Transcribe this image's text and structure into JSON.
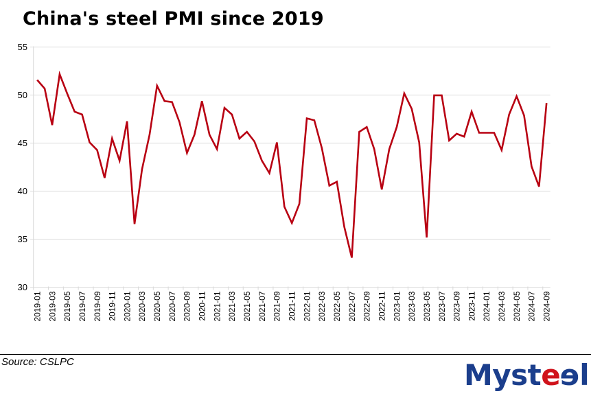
{
  "title": "China's steel PMI since 2019",
  "source": "Source: CSLPC",
  "logo": {
    "prefix": "Myst",
    "e1": "e",
    "e2": "e",
    "suffix": "l",
    "primary_color": "#1B3E8C",
    "accent_color": "#D0121B"
  },
  "chart_data": {
    "type": "line",
    "title": "China's steel PMI since 2019",
    "xlabel": "",
    "ylabel": "",
    "ylim": [
      30,
      55
    ],
    "yticks": [
      30,
      35,
      40,
      45,
      50,
      55
    ],
    "grid": true,
    "legend": "none",
    "line_color": "#B80012",
    "x": [
      "2019-01",
      "2019-02",
      "2019-03",
      "2019-04",
      "2019-05",
      "2019-06",
      "2019-07",
      "2019-08",
      "2019-09",
      "2019-10",
      "2019-11",
      "2019-12",
      "2020-01",
      "2020-02",
      "2020-03",
      "2020-04",
      "2020-05",
      "2020-06",
      "2020-07",
      "2020-08",
      "2020-09",
      "2020-10",
      "2020-11",
      "2020-12",
      "2021-01",
      "2021-02",
      "2021-03",
      "2021-04",
      "2021-05",
      "2021-06",
      "2021-07",
      "2021-08",
      "2021-09",
      "2021-10",
      "2021-11",
      "2021-12",
      "2022-01",
      "2022-02",
      "2022-03",
      "2022-04",
      "2022-05",
      "2022-06",
      "2022-07",
      "2022-08",
      "2022-09",
      "2022-10",
      "2022-11",
      "2022-12",
      "2023-01",
      "2023-02",
      "2023-03",
      "2023-04",
      "2023-05",
      "2023-06",
      "2023-07",
      "2023-08",
      "2023-09",
      "2023-10",
      "2023-11",
      "2023-12",
      "2024-01",
      "2024-02",
      "2024-03",
      "2024-04",
      "2024-05",
      "2024-06",
      "2024-07",
      "2024-08",
      "2024-09"
    ],
    "xtick_labels": [
      "2019-01",
      "2019-03",
      "2019-05",
      "2019-07",
      "2019-09",
      "2019-11",
      "2020-01",
      "2020-03",
      "2020-05",
      "2020-07",
      "2020-09",
      "2020-11",
      "2021-01",
      "2021-03",
      "2021-05",
      "2021-07",
      "2021-09",
      "2021-11",
      "2022-01",
      "2022-03",
      "2022-05",
      "2022-07",
      "2022-09",
      "2022-11",
      "2023-01",
      "2023-03",
      "2023-05",
      "2023-07",
      "2023-09",
      "2023-11",
      "2024-01",
      "2024-03",
      "2024-05",
      "2024-07",
      "2024-09"
    ],
    "series": [
      {
        "name": "Steel PMI",
        "values": [
          51.5,
          50.6,
          46.8,
          52.1,
          50.1,
          48.2,
          47.9,
          45.0,
          44.2,
          41.3,
          45.4,
          43.1,
          47.2,
          36.5,
          42.2,
          45.8,
          50.9,
          49.3,
          49.2,
          47.1,
          43.9,
          45.8,
          49.3,
          45.8,
          44.3,
          48.6,
          47.9,
          45.4,
          46.1,
          45.1,
          43.1,
          41.8,
          45.0,
          38.3,
          36.6,
          38.6,
          47.5,
          47.3,
          44.4,
          40.5,
          40.9,
          36.2,
          33.0,
          46.1,
          46.6,
          44.3,
          40.1,
          44.3,
          46.6,
          50.1,
          48.5,
          45.0,
          35.1,
          49.9,
          49.9,
          45.2,
          45.9,
          45.6,
          48.2,
          46.0,
          46.0,
          46.0,
          44.2,
          47.9,
          49.8,
          47.8,
          42.5,
          40.4,
          49.1
        ]
      }
    ]
  }
}
